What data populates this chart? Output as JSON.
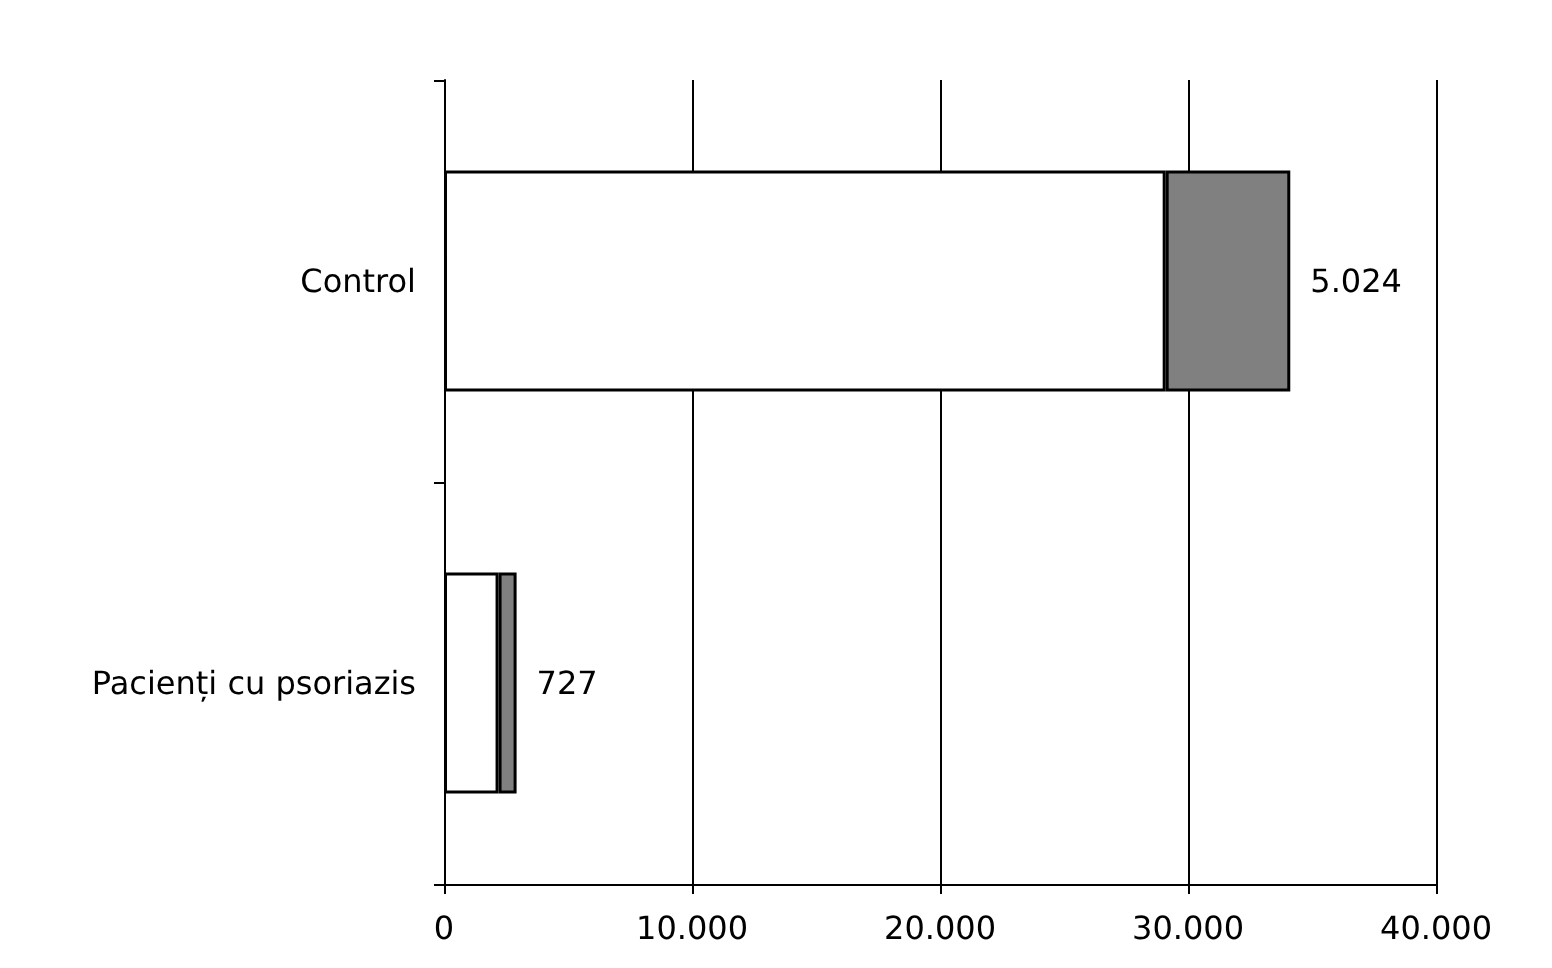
{
  "chart_data": {
    "type": "bar",
    "orientation": "horizontal",
    "stacked": true,
    "categories": [
      "Control",
      "Pacienți cu psoriazis"
    ],
    "series": [
      {
        "color": "#ffffff",
        "values": [
          29100,
          2200
        ]
      },
      {
        "color": "#808080",
        "values": [
          5024,
          727
        ],
        "value_labels": [
          "5.024",
          "727"
        ]
      }
    ],
    "xlim": [
      0,
      40000
    ],
    "xticks": [
      {
        "value": 0,
        "label": "0"
      },
      {
        "value": 10000,
        "label": "10.000"
      },
      {
        "value": 20000,
        "label": "20.000"
      },
      {
        "value": 30000,
        "label": "30.000"
      },
      {
        "value": 40000,
        "label": "40.000"
      }
    ],
    "grid": "x"
  }
}
